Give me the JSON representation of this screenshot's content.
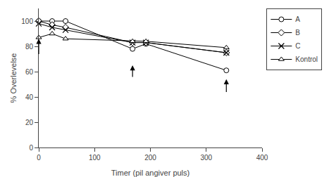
{
  "chart_data": {
    "type": "line",
    "x": [
      0,
      24,
      48,
      168,
      192,
      336
    ],
    "series": [
      {
        "name": "A",
        "color": "black",
        "marker": "circle",
        "values": [
          100,
          100,
          100,
          78,
          82,
          61
        ]
      },
      {
        "name": "B",
        "color": "black",
        "marker": "diamond",
        "values": [
          100,
          97,
          95,
          83,
          83,
          75
        ]
      },
      {
        "name": "C",
        "color": "black",
        "marker": "x",
        "values": [
          98,
          95,
          93,
          83,
          83,
          75
        ]
      },
      {
        "name": "Kontrol",
        "color": "black",
        "marker": "triangle-up",
        "values": [
          87,
          90,
          86,
          84,
          84,
          79
        ]
      }
    ],
    "arrows": [
      {
        "x": 0,
        "ybase": 73,
        "ytip": 86
      },
      {
        "x": 168,
        "ybase": 55,
        "ytip": 65
      },
      {
        "x": 336,
        "ybase": 43,
        "ytip": 54
      }
    ],
    "xlabel": "Timer (pil angiver puls)",
    "ylabel": "% Overlevelse",
    "xlim": [
      0,
      400
    ],
    "ylim": [
      0,
      110
    ],
    "xticks": [
      0,
      100,
      200,
      300,
      400
    ],
    "yticks": [
      0,
      20,
      40,
      60,
      80,
      100
    ],
    "grid": false,
    "legend": "upper right"
  }
}
